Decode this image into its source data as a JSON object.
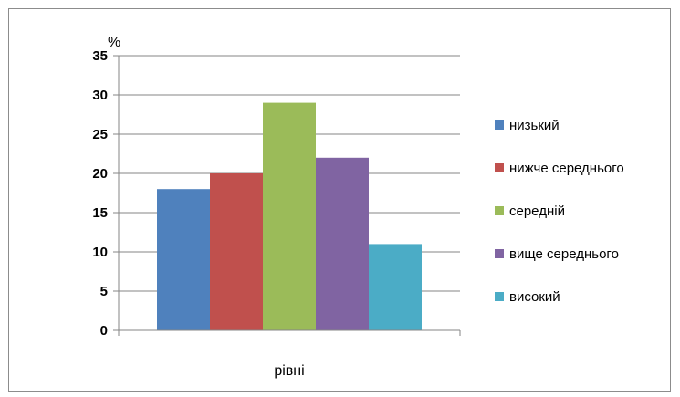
{
  "chart_data": {
    "type": "bar",
    "categories": [
      "рівні"
    ],
    "series": [
      {
        "name": "низький",
        "color": "#4F81BD",
        "values": [
          18
        ]
      },
      {
        "name": "нижче середнього",
        "color": "#C0504D",
        "values": [
          20
        ]
      },
      {
        "name": "середній",
        "color": "#9BBB59",
        "values": [
          29
        ]
      },
      {
        "name": "вище середнього",
        "color": "#8064A2",
        "values": [
          22
        ]
      },
      {
        "name": "високий",
        "color": "#4BACC6",
        "values": [
          11
        ]
      }
    ],
    "title": "",
    "xlabel": "",
    "ylabel": "%",
    "ylim": [
      0,
      35
    ],
    "yticks": [
      "0",
      "5",
      "10",
      "15",
      "20",
      "25",
      "30",
      "35"
    ],
    "grid": true,
    "legend": "right"
  }
}
